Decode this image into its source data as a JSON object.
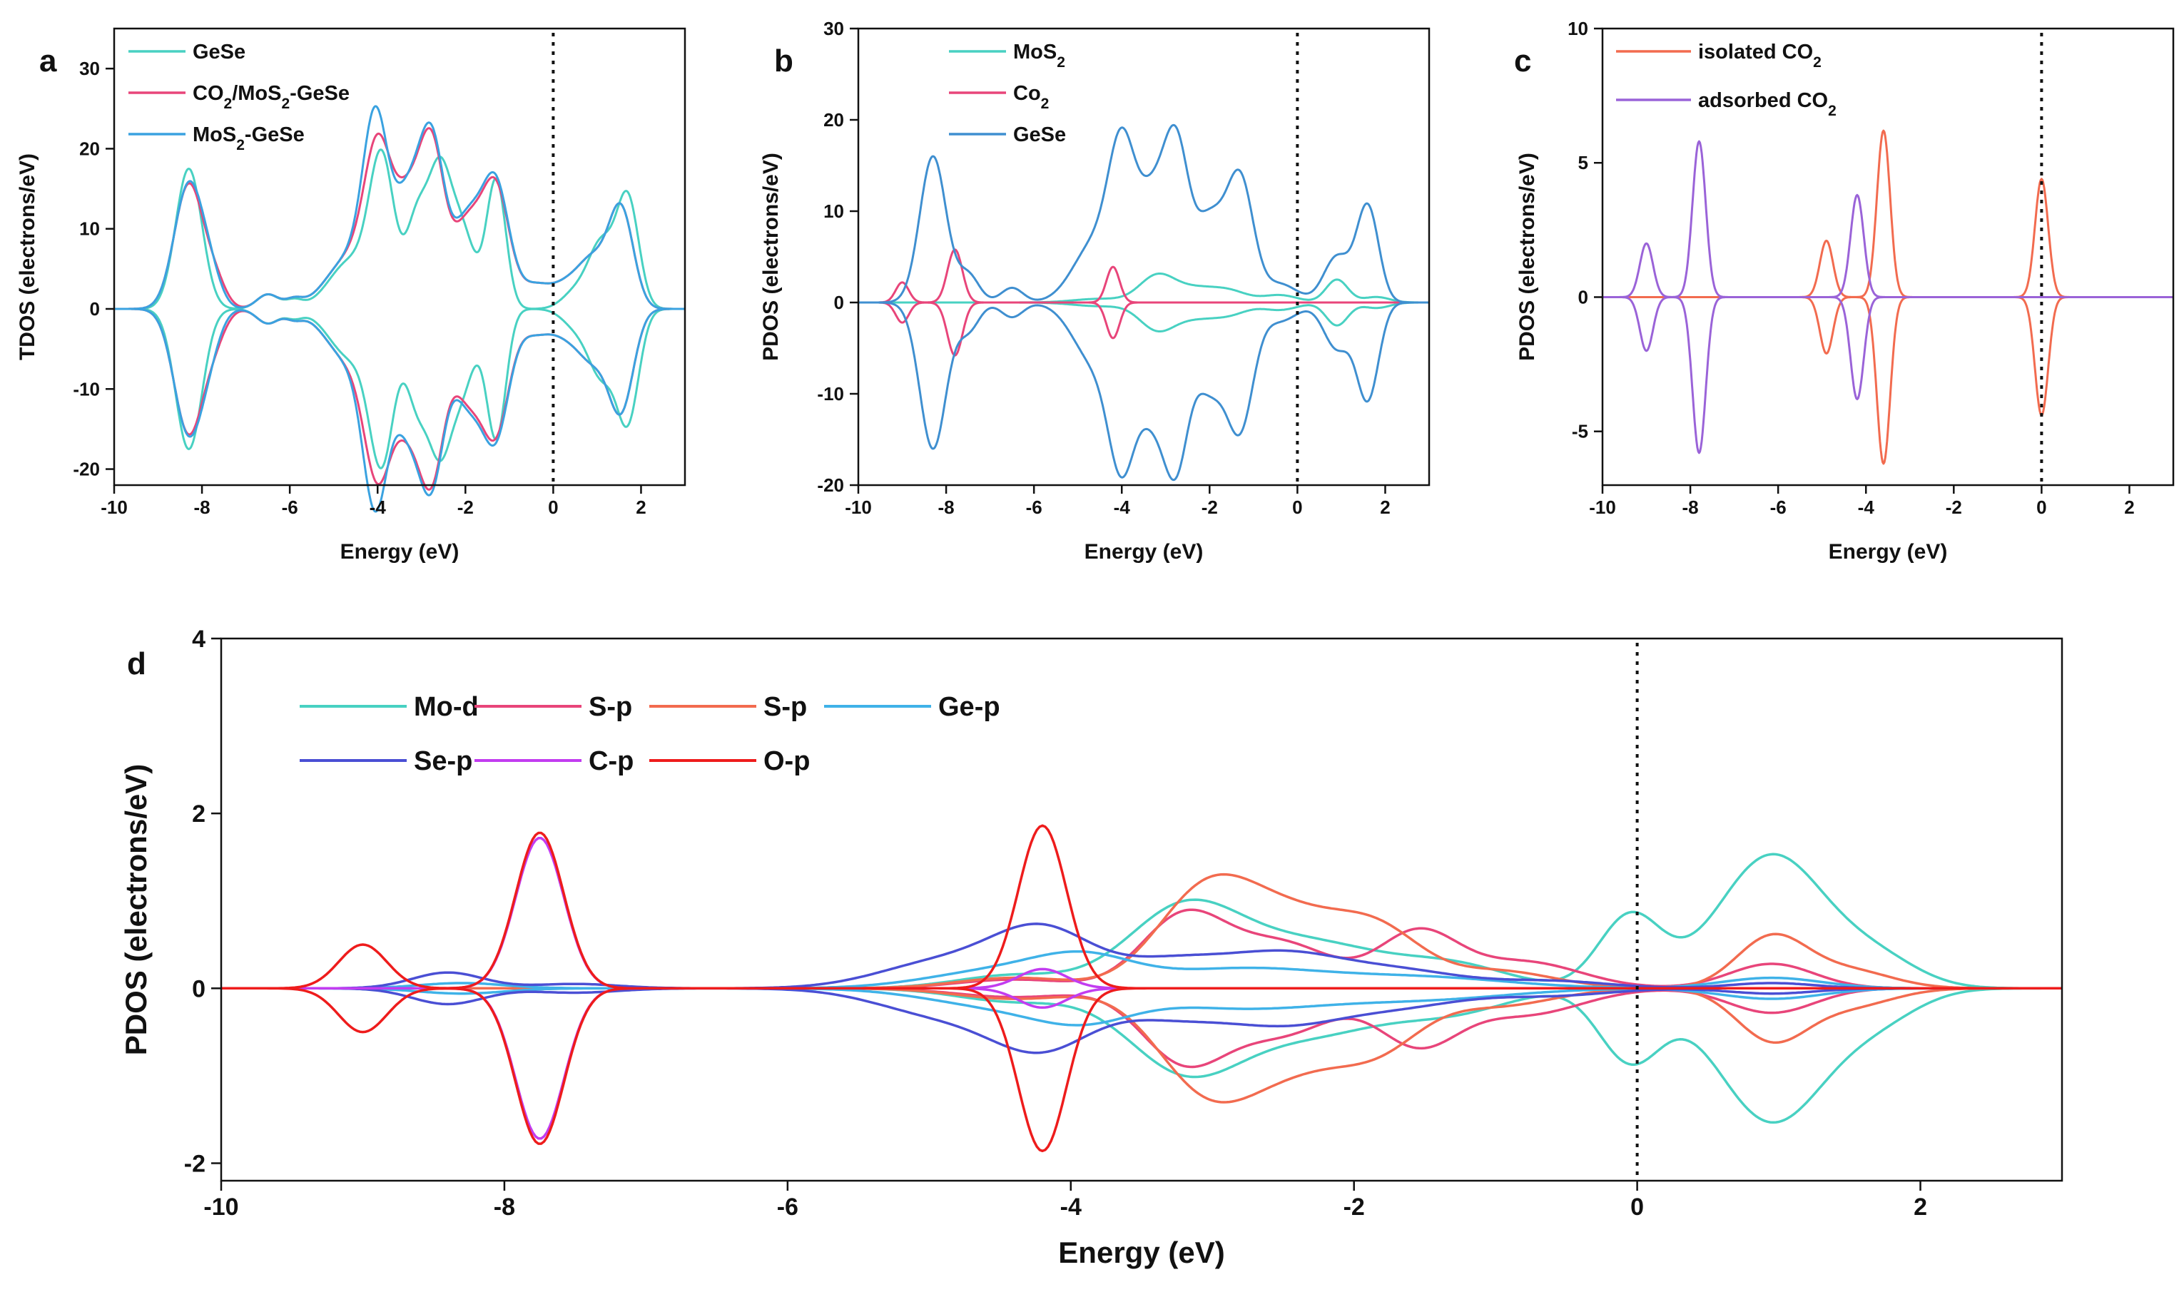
{
  "figure": {
    "panels": [
      {
        "letter": "a",
        "xlabel": "Energy (eV)",
        "ylabel": "TDOS (electrons/eV)"
      },
      {
        "letter": "b",
        "xlabel": "Energy (eV)",
        "ylabel": "PDOS (electrons/eV)"
      },
      {
        "letter": "c",
        "xlabel": "Energy (eV)",
        "ylabel": "PDOS (electrons/eV)"
      },
      {
        "letter": "d",
        "xlabel": "Energy (eV)",
        "ylabel": "PDOS (electrons/eV)"
      }
    ]
  },
  "chart_data": [
    {
      "panel": "a",
      "type": "line",
      "mirrored_spin": true,
      "xlabel": "Energy (eV)",
      "ylabel": "TDOS (electrons/eV)",
      "xlim": [
        -10,
        3
      ],
      "ylim": [
        -22,
        35
      ],
      "xticks": [
        -10,
        -8,
        -6,
        -4,
        -2,
        0,
        2
      ],
      "yticks": [
        -20,
        -10,
        0,
        10,
        20,
        30
      ],
      "fermi_level": 0,
      "legend_position": "top-left",
      "series": [
        {
          "name": "GeSe",
          "legend": [
            "GeSe"
          ],
          "color": "#48d1c2",
          "peaks": [
            [
              -8.3,
              17.5,
              0.3
            ],
            [
              -6.5,
              1.8,
              0.25
            ],
            [
              -5.9,
              1.0,
              0.2
            ],
            [
              -4.6,
              6.0,
              0.5
            ],
            [
              -3.9,
              17.5,
              0.28
            ],
            [
              -3.1,
              11.0,
              0.25
            ],
            [
              -2.6,
              15.0,
              0.25
            ],
            [
              -2.1,
              10.0,
              0.3
            ],
            [
              -1.3,
              16.0,
              0.22
            ],
            [
              0.5,
              2.0,
              0.3
            ],
            [
              1.1,
              8.0,
              0.3
            ],
            [
              1.7,
              13.5,
              0.25
            ]
          ]
        },
        {
          "name": "CO2/MoS2-GeSe",
          "legend": [
            "CO",
            "2",
            "/MoS",
            "2",
            "-GeSe"
          ],
          "color": "#e8457a",
          "peaks": [
            [
              -8.3,
              15.5,
              0.33
            ],
            [
              -7.7,
              3.0,
              0.25
            ],
            [
              -6.5,
              1.8,
              0.25
            ],
            [
              -5.9,
              1.0,
              0.2
            ],
            [
              -4.6,
              6.5,
              0.55
            ],
            [
              -4.0,
              16.5,
              0.3
            ],
            [
              -3.3,
              13.0,
              0.35
            ],
            [
              -2.75,
              17.5,
              0.28
            ],
            [
              -1.95,
              10.5,
              0.35
            ],
            [
              -1.3,
              14.0,
              0.3
            ],
            [
              -0.4,
              3.0,
              0.4
            ],
            [
              0.3,
              2.0,
              0.3
            ],
            [
              0.9,
              6.0,
              0.35
            ],
            [
              1.55,
              12.0,
              0.28
            ]
          ]
        },
        {
          "name": "MoS2-GeSe",
          "legend": [
            "MoS",
            "2",
            "-GeSe"
          ],
          "color": "#3aa2e0",
          "peaks": [
            [
              -8.3,
              15.5,
              0.33
            ],
            [
              -7.8,
              3.0,
              0.25
            ],
            [
              -6.5,
              1.8,
              0.25
            ],
            [
              -5.9,
              1.0,
              0.2
            ],
            [
              -4.6,
              6.5,
              0.55
            ],
            [
              -4.05,
              20.0,
              0.28
            ],
            [
              -3.3,
              13.5,
              0.35
            ],
            [
              -2.75,
              18.0,
              0.28
            ],
            [
              -1.95,
              11.0,
              0.35
            ],
            [
              -1.3,
              14.5,
              0.3
            ],
            [
              -0.4,
              3.0,
              0.4
            ],
            [
              0.3,
              2.0,
              0.3
            ],
            [
              0.9,
              6.0,
              0.35
            ],
            [
              1.55,
              12.0,
              0.28
            ]
          ]
        }
      ]
    },
    {
      "panel": "b",
      "type": "line",
      "mirrored_spin": true,
      "xlabel": "Energy (eV)",
      "ylabel": "PDOS (electrons/eV)",
      "xlim": [
        -10,
        3
      ],
      "ylim": [
        -20,
        30
      ],
      "xticks": [
        -10,
        -8,
        -6,
        -4,
        -2,
        0,
        2
      ],
      "yticks": [
        -20,
        -10,
        0,
        10,
        20,
        30
      ],
      "fermi_level": 0,
      "legend_position": "top-left",
      "series": [
        {
          "name": "MoS2",
          "legend": [
            "MoS",
            "2"
          ],
          "color": "#48d1c2",
          "peaks": [
            [
              -4.5,
              0.4,
              0.6
            ],
            [
              -3.2,
              2.8,
              0.4
            ],
            [
              -2.3,
              1.5,
              0.5
            ],
            [
              -1.5,
              1.0,
              0.4
            ],
            [
              -0.4,
              0.8,
              0.4
            ],
            [
              0.9,
              2.5,
              0.25
            ],
            [
              1.8,
              0.6,
              0.3
            ]
          ]
        },
        {
          "name": "Co2",
          "legend": [
            "Co",
            "2"
          ],
          "color": "#e8457a",
          "peaks": [
            [
              -9.0,
              2.2,
              0.15
            ],
            [
              -7.8,
              5.8,
              0.17
            ],
            [
              -4.2,
              3.9,
              0.15
            ]
          ]
        },
        {
          "name": "GeSe",
          "legend": [
            "GeSe"
          ],
          "color": "#3f8fd0",
          "peaks": [
            [
              -8.3,
              16.0,
              0.3
            ],
            [
              -7.5,
              3.0,
              0.25
            ],
            [
              -6.5,
              1.6,
              0.25
            ],
            [
              -4.6,
              6.5,
              0.5
            ],
            [
              -4.0,
              14.5,
              0.3
            ],
            [
              -3.3,
              11.0,
              0.35
            ],
            [
              -2.75,
              15.0,
              0.28
            ],
            [
              -2.0,
              9.0,
              0.35
            ],
            [
              -1.3,
              13.0,
              0.3
            ],
            [
              -0.4,
              2.0,
              0.4
            ],
            [
              0.9,
              5.0,
              0.3
            ],
            [
              1.6,
              10.5,
              0.25
            ]
          ]
        }
      ]
    },
    {
      "panel": "c",
      "type": "line",
      "mirrored_spin": true,
      "xlabel": "Energy (eV)",
      "ylabel": "PDOS (electrons/eV)",
      "xlim": [
        -10,
        3
      ],
      "ylim": [
        -7,
        10
      ],
      "xticks": [
        -10,
        -8,
        -6,
        -4,
        -2,
        0,
        2
      ],
      "yticks": [
        -5,
        0,
        5,
        10
      ],
      "fermi_level": 0,
      "legend_position": "top-left",
      "series": [
        {
          "name": "isolated CO2",
          "legend": [
            "isolated CO",
            "2"
          ],
          "color": "#f26b4f",
          "peaks": [
            [
              -4.9,
              2.1,
              0.15
            ],
            [
              -3.6,
              6.2,
              0.15
            ],
            [
              0.0,
              4.4,
              0.15
            ]
          ]
        },
        {
          "name": "adsorbed CO2",
          "legend": [
            "adsorbed CO",
            "2"
          ],
          "color": "#9a63d8",
          "peaks": [
            [
              -9.0,
              2.0,
              0.15
            ],
            [
              -7.8,
              5.8,
              0.15
            ],
            [
              -4.2,
              3.8,
              0.15
            ]
          ]
        }
      ]
    },
    {
      "panel": "d",
      "type": "line",
      "mirrored_spin": true,
      "xlabel": "Energy (eV)",
      "ylabel": "PDOS (electrons/eV)",
      "xlim": [
        -10,
        3
      ],
      "ylim": [
        -2.2,
        4
      ],
      "xticks": [
        -10,
        -8,
        -6,
        -4,
        -2,
        0,
        2
      ],
      "yticks": [
        -2,
        0,
        2,
        4
      ],
      "fermi_level": 0,
      "legend_position": "top-left",
      "series": [
        {
          "name": "Mo-d",
          "legend": [
            "Mo-d"
          ],
          "color": "#48d1c2",
          "peaks": [
            [
              -4.4,
              0.15,
              0.4
            ],
            [
              -3.2,
              0.9,
              0.4
            ],
            [
              -2.3,
              0.5,
              0.5
            ],
            [
              -1.3,
              0.25,
              0.4
            ],
            [
              -0.05,
              0.82,
              0.22
            ],
            [
              0.95,
              1.52,
              0.38
            ],
            [
              1.7,
              0.3,
              0.3
            ]
          ]
        },
        {
          "name": "S-p",
          "legend": [
            "S-p"
          ],
          "color": "#e8457a",
          "peaks": [
            [
              -4.4,
              0.1,
              0.4
            ],
            [
              -3.2,
              0.82,
              0.3
            ],
            [
              -2.5,
              0.5,
              0.35
            ],
            [
              -1.55,
              0.62,
              0.28
            ],
            [
              -0.8,
              0.3,
              0.4
            ],
            [
              0.95,
              0.28,
              0.3
            ]
          ]
        },
        {
          "name": "S-p",
          "legend": [
            "S-p"
          ],
          "color": "#f26b4f",
          "peaks": [
            [
              -4.4,
              0.12,
              0.4
            ],
            [
              -3.05,
              1.05,
              0.35
            ],
            [
              -2.4,
              0.75,
              0.4
            ],
            [
              -1.8,
              0.5,
              0.3
            ],
            [
              -1.0,
              0.2,
              0.4
            ],
            [
              0.95,
              0.58,
              0.25
            ],
            [
              1.5,
              0.2,
              0.3
            ]
          ]
        },
        {
          "name": "Ge-p",
          "legend": [
            "Ge-p"
          ],
          "color": "#3fb2e8",
          "peaks": [
            [
              -8.3,
              0.06,
              0.3
            ],
            [
              -4.5,
              0.2,
              0.5
            ],
            [
              -3.9,
              0.28,
              0.35
            ],
            [
              -2.8,
              0.22,
              0.6
            ],
            [
              -1.5,
              0.12,
              0.6
            ],
            [
              0.95,
              0.12,
              0.35
            ]
          ]
        },
        {
          "name": "Se-p",
          "legend": [
            "Se-p"
          ],
          "color": "#4a4fd4",
          "peaks": [
            [
              -8.4,
              0.18,
              0.25
            ],
            [
              -7.5,
              0.05,
              0.3
            ],
            [
              -4.9,
              0.3,
              0.45
            ],
            [
              -4.2,
              0.62,
              0.35
            ],
            [
              -3.3,
              0.3,
              0.4
            ],
            [
              -2.5,
              0.35,
              0.4
            ],
            [
              -1.7,
              0.2,
              0.45
            ],
            [
              -0.6,
              0.08,
              0.4
            ],
            [
              0.95,
              0.06,
              0.3
            ]
          ]
        },
        {
          "name": "C-p",
          "legend": [
            "C-p"
          ],
          "color": "#c23cf0",
          "peaks": [
            [
              -7.75,
              1.72,
              0.17
            ],
            [
              -4.2,
              0.22,
              0.17
            ]
          ]
        },
        {
          "name": "O-p",
          "legend": [
            "O-p"
          ],
          "color": "#ee1c1c",
          "peaks": [
            [
              -9.0,
              0.5,
              0.17
            ],
            [
              -7.75,
              1.78,
              0.17
            ],
            [
              -4.2,
              1.86,
              0.17
            ]
          ]
        }
      ]
    }
  ]
}
